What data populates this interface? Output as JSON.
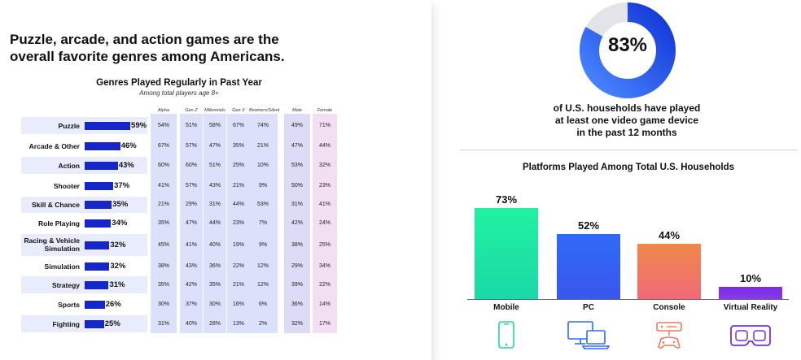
{
  "headline": {
    "line1": "Puzzle, arcade, and action games are the",
    "line2": "overall favorite genres among Americans."
  },
  "genres_table": {
    "title": "Genres Played Regularly in Past Year",
    "subtitle": "Among total players age 8+",
    "columns": [
      "Alpha",
      "Gen Z",
      "Millennials",
      "Gen X",
      "Boomers/Silent",
      "Male",
      "Female"
    ],
    "rows": [
      {
        "label": "Puzzle",
        "total": 59,
        "total_label": "59%",
        "cells": [
          "54%",
          "51%",
          "58%",
          "67%",
          "74%",
          "49%",
          "71%"
        ]
      },
      {
        "label": "Arcade & Other",
        "total": 46,
        "total_label": "46%",
        "cells": [
          "67%",
          "57%",
          "47%",
          "35%",
          "21%",
          "47%",
          "44%"
        ]
      },
      {
        "label": "Action",
        "total": 43,
        "total_label": "43%",
        "cells": [
          "60%",
          "60%",
          "51%",
          "25%",
          "10%",
          "53%",
          "32%"
        ]
      },
      {
        "label": "Shooter",
        "total": 37,
        "total_label": "37%",
        "cells": [
          "41%",
          "57%",
          "43%",
          "21%",
          "9%",
          "50%",
          "23%"
        ]
      },
      {
        "label": "Skill & Chance",
        "total": 35,
        "total_label": "35%",
        "cells": [
          "21%",
          "29%",
          "31%",
          "44%",
          "53%",
          "31%",
          "41%"
        ]
      },
      {
        "label": "Role Playing",
        "total": 34,
        "total_label": "34%",
        "cells": [
          "35%",
          "47%",
          "44%",
          "23%",
          "7%",
          "42%",
          "24%"
        ]
      },
      {
        "label": "Racing & Vehicle Simulation",
        "label_line1": "Racing & Vehicle",
        "label_line2": "Simulation",
        "total": 32,
        "total_label": "32%",
        "cells": [
          "45%",
          "41%",
          "40%",
          "19%",
          "9%",
          "38%",
          "25%"
        ]
      },
      {
        "label": "Simulation",
        "total": 32,
        "total_label": "32%",
        "cells": [
          "38%",
          "43%",
          "36%",
          "22%",
          "12%",
          "29%",
          "34%"
        ]
      },
      {
        "label": "Strategy",
        "total": 31,
        "total_label": "31%",
        "cells": [
          "35%",
          "42%",
          "35%",
          "21%",
          "12%",
          "39%",
          "22%"
        ]
      },
      {
        "label": "Sports",
        "total": 26,
        "total_label": "26%",
        "cells": [
          "30%",
          "37%",
          "30%",
          "16%",
          "6%",
          "36%",
          "14%"
        ]
      },
      {
        "label": "Fighting",
        "total": 25,
        "total_label": "25%",
        "cells": [
          "31%",
          "40%",
          "28%",
          "13%",
          "2%",
          "32%",
          "17%"
        ]
      }
    ]
  },
  "households": {
    "value": 83,
    "value_label": "83%",
    "line1": "of U.S. households have played",
    "line2": "at least one video game device",
    "line3": "in the past 12 months"
  },
  "chart_data": [
    {
      "type": "bar",
      "title": "Genres Played Regularly in Past Year",
      "categories": [
        "Puzzle",
        "Arcade & Other",
        "Action",
        "Shooter",
        "Skill & Chance",
        "Role Playing",
        "Racing & Vehicle Simulation",
        "Simulation",
        "Strategy",
        "Sports",
        "Fighting"
      ],
      "values": [
        59,
        46,
        43,
        37,
        35,
        34,
        32,
        32,
        31,
        26,
        25
      ]
    },
    {
      "type": "pie",
      "values": [
        83,
        17
      ]
    },
    {
      "type": "bar",
      "title": "Platforms Played Among Total U.S. Households",
      "categories": [
        "Mobile",
        "PC",
        "Console",
        "Virtual Reality"
      ],
      "values": [
        73,
        52,
        44,
        10
      ],
      "value_labels": [
        "73%",
        "52%",
        "44%",
        "10%"
      ],
      "ylim": [
        0,
        100
      ]
    }
  ],
  "colors": {
    "genre_bar": "#1726c8",
    "donut_blue": "#1a5cf0",
    "donut_grey": "#e3e4e8",
    "mobile": "#22f0a0",
    "pc": "#2f6bf5",
    "console": "#f07a55",
    "vr": "#7a2ee0"
  },
  "icons": [
    "smartphone-icon",
    "pc-monitor-laptop-icon",
    "console-controller-icon",
    "vr-headset-icon"
  ]
}
